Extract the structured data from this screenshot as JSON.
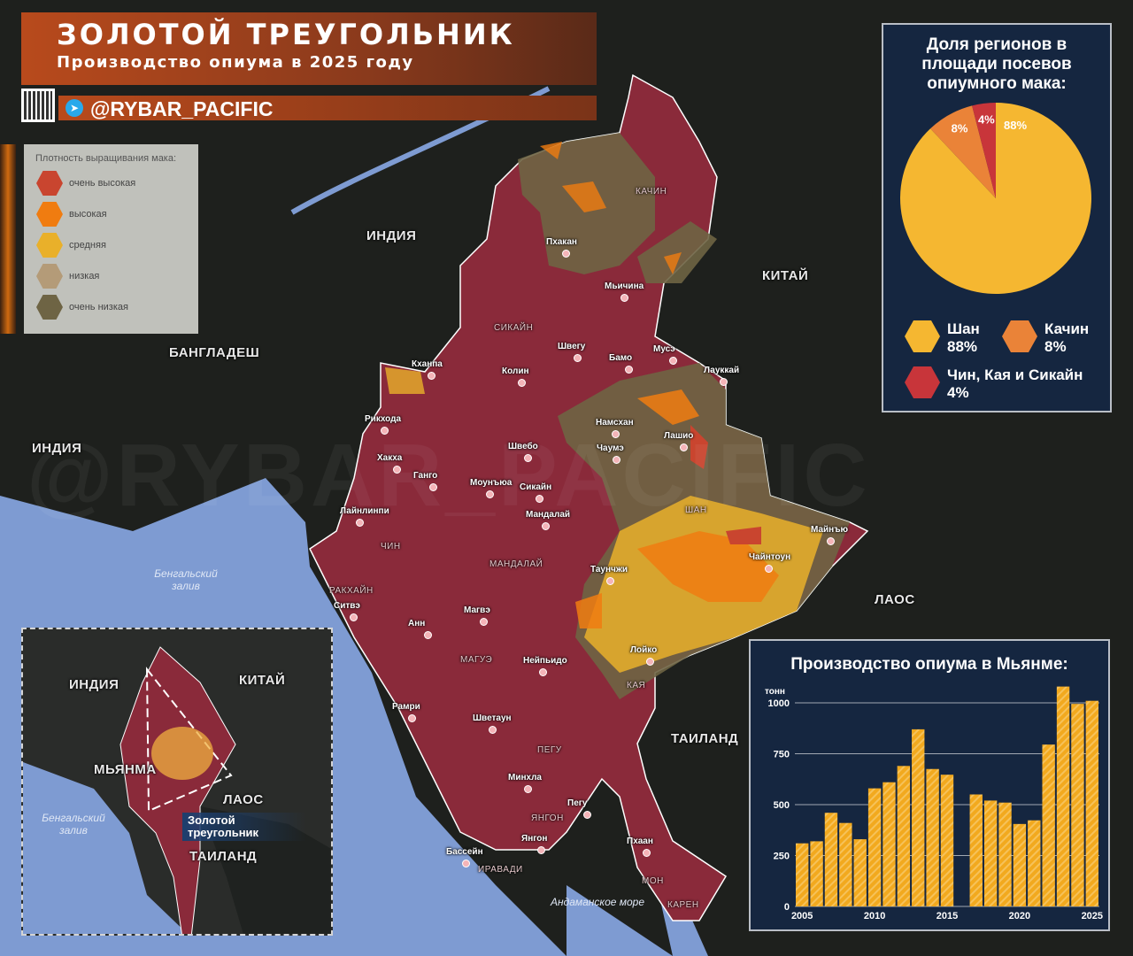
{
  "header": {
    "title": "ЗОЛОТОЙ ТРЕУГОЛЬНИК",
    "subtitle": "Производство опиума в 2025 году",
    "handle": "@RYBAR_PACIFIC",
    "watermark": "@RYBAR_PACIFIC"
  },
  "legend": {
    "title": "Плотность выращивания мака:",
    "items": [
      {
        "label": "очень высокая",
        "color": "#c9452f"
      },
      {
        "label": "высокая",
        "color": "#f07c10"
      },
      {
        "label": "средняя",
        "color": "#e9b02a"
      },
      {
        "label": "низкая",
        "color": "#b49b78"
      },
      {
        "label": "очень низкая",
        "color": "#6e6444"
      }
    ]
  },
  "colors": {
    "myanmar": "#8a2a3a",
    "panel": "#14284a",
    "bar": "#f2a91e"
  },
  "map_labels": {
    "countries": [
      "ИНДИЯ",
      "КИТАЙ",
      "БАНГЛАДЕШ",
      "ИНДИЯ",
      "ЛАОС",
      "ТАИЛАНД"
    ],
    "regions": [
      "КАЧИН",
      "СИКАЙН",
      "ЧИН",
      "ШАН",
      "МАНДАЛАЙ",
      "РАКХАЙН",
      "МАГУЭ",
      "ПЕГУ",
      "ЯНГОН",
      "ИРАВАДИ",
      "МОН",
      "КАРЕН",
      "КАЯ"
    ],
    "seas": [
      "Бенгальский залив",
      "Андаманское море"
    ],
    "cities": [
      "Пхакан",
      "Мьичина",
      "Швегу",
      "Бамо",
      "Мусэ",
      "Лауккай",
      "Кханпа",
      "Колин",
      "Рикхода",
      "Намсхан",
      "Лашио",
      "Швебо",
      "Чаумэ",
      "Хакха",
      "Ганго",
      "Моунъюа",
      "Сикайн",
      "Лайнлинпи",
      "Мандалай",
      "Майнъю",
      "Чайнтоун",
      "Таунчжи",
      "Ситвэ",
      "Анн",
      "Магвэ",
      "Нейпьидо",
      "Лойко",
      "Рамри",
      "Шветаун",
      "Минхла",
      "Пегу",
      "Янгон",
      "Бассейн",
      "Пхаан"
    ]
  },
  "pie": {
    "title": "Доля регионов в площади посевов опиумного мака:",
    "slices": [
      {
        "name": "Шан",
        "value": 88,
        "label": "88%",
        "color": "#f5b731"
      },
      {
        "name": "Качин",
        "value": 8,
        "label": "8%",
        "color": "#ea8338"
      },
      {
        "name": "Чин, Кая и Сикайн",
        "value": 4,
        "label": "4%",
        "color": "#c8353a"
      }
    ]
  },
  "inset": {
    "labels": [
      "ИНДИЯ",
      "КИТАЙ",
      "МЬЯНМА",
      "ЛАОС",
      "ТАИЛАНД",
      "Бенгальский залив"
    ],
    "callout": "Золотой треугольник"
  },
  "chart_data": {
    "type": "bar",
    "title": "Производство опиума в Мьянме:",
    "ylabel": "тонн",
    "ylim": [
      0,
      1100
    ],
    "yticks": [
      0,
      250,
      500,
      750,
      1000
    ],
    "xticks": [
      2005,
      2010,
      2015,
      2020,
      2025
    ],
    "categories": [
      2005,
      2006,
      2007,
      2008,
      2009,
      2010,
      2011,
      2012,
      2013,
      2014,
      2015,
      2016,
      2017,
      2018,
      2019,
      2020,
      2021,
      2022,
      2023,
      2024,
      2025
    ],
    "values": [
      310,
      320,
      460,
      410,
      330,
      580,
      610,
      690,
      870,
      675,
      647,
      null,
      550,
      520,
      510,
      405,
      423,
      795,
      1080,
      995,
      1010
    ],
    "grid": true
  }
}
